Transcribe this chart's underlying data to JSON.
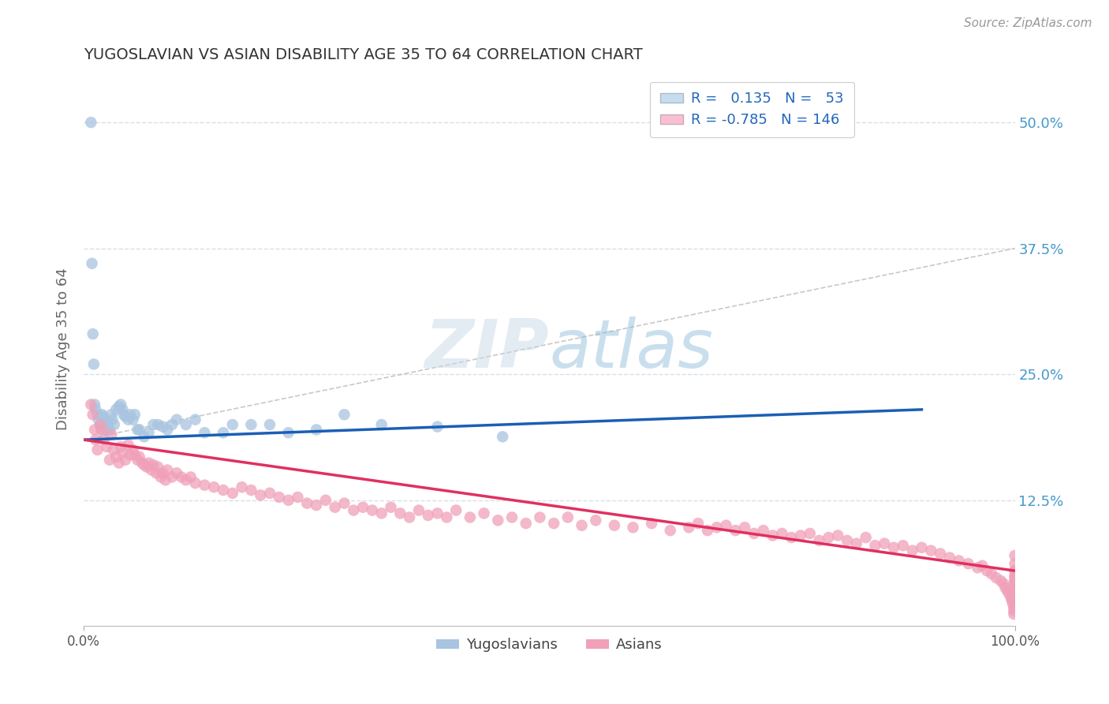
{
  "title": "YUGOSLAVIAN VS ASIAN DISABILITY AGE 35 TO 64 CORRELATION CHART",
  "source_text": "Source: ZipAtlas.com",
  "ylabel": "Disability Age 35 to 64",
  "watermark": "ZIPatlas",
  "xlim": [
    0.0,
    1.0
  ],
  "ylim": [
    0.0,
    0.55
  ],
  "yticks_right": [
    0.125,
    0.25,
    0.375,
    0.5
  ],
  "ytick_labels_right": [
    "12.5%",
    "25.0%",
    "37.5%",
    "50.0%"
  ],
  "blue_R": 0.135,
  "blue_N": 53,
  "pink_R": -0.785,
  "pink_N": 146,
  "blue_color": "#a8c4e0",
  "pink_color": "#f0a0b8",
  "blue_line_color": "#1a5fb4",
  "pink_line_color": "#e03060",
  "dashed_line_color": "#bbbbbb",
  "grid_color": "#d8dfe8",
  "background_color": "#ffffff",
  "title_color": "#333333",
  "right_axis_color": "#4499cc",
  "legend_box_color_blue": "#c8dcf0",
  "legend_box_color_pink": "#f8c0d0",
  "blue_x": [
    0.008,
    0.009,
    0.01,
    0.011,
    0.012,
    0.013,
    0.015,
    0.016,
    0.018,
    0.019,
    0.02,
    0.021,
    0.022,
    0.023,
    0.025,
    0.026,
    0.028,
    0.03,
    0.031,
    0.033,
    0.035,
    0.038,
    0.04,
    0.042,
    0.043,
    0.045,
    0.048,
    0.05,
    0.053,
    0.055,
    0.058,
    0.06,
    0.065,
    0.07,
    0.075,
    0.08,
    0.085,
    0.09,
    0.095,
    0.1,
    0.11,
    0.12,
    0.13,
    0.15,
    0.16,
    0.18,
    0.2,
    0.22,
    0.25,
    0.28,
    0.32,
    0.38,
    0.45
  ],
  "blue_y": [
    0.5,
    0.36,
    0.29,
    0.26,
    0.22,
    0.215,
    0.21,
    0.205,
    0.2,
    0.195,
    0.21,
    0.208,
    0.205,
    0.2,
    0.195,
    0.2,
    0.195,
    0.21,
    0.205,
    0.2,
    0.215,
    0.218,
    0.22,
    0.215,
    0.21,
    0.208,
    0.205,
    0.21,
    0.205,
    0.21,
    0.195,
    0.195,
    0.188,
    0.192,
    0.2,
    0.2,
    0.198,
    0.195,
    0.2,
    0.205,
    0.2,
    0.205,
    0.192,
    0.192,
    0.2,
    0.2,
    0.2,
    0.192,
    0.195,
    0.21,
    0.2,
    0.198,
    0.188
  ],
  "pink_x": [
    0.008,
    0.01,
    0.012,
    0.013,
    0.015,
    0.018,
    0.02,
    0.022,
    0.025,
    0.028,
    0.03,
    0.032,
    0.035,
    0.038,
    0.04,
    0.042,
    0.045,
    0.048,
    0.05,
    0.053,
    0.055,
    0.058,
    0.06,
    0.063,
    0.065,
    0.068,
    0.07,
    0.073,
    0.075,
    0.078,
    0.08,
    0.083,
    0.085,
    0.088,
    0.09,
    0.095,
    0.1,
    0.105,
    0.11,
    0.115,
    0.12,
    0.13,
    0.14,
    0.15,
    0.16,
    0.17,
    0.18,
    0.19,
    0.2,
    0.21,
    0.22,
    0.23,
    0.24,
    0.25,
    0.26,
    0.27,
    0.28,
    0.29,
    0.3,
    0.31,
    0.32,
    0.33,
    0.34,
    0.35,
    0.36,
    0.37,
    0.38,
    0.39,
    0.4,
    0.415,
    0.43,
    0.445,
    0.46,
    0.475,
    0.49,
    0.505,
    0.52,
    0.535,
    0.55,
    0.57,
    0.59,
    0.61,
    0.63,
    0.65,
    0.66,
    0.67,
    0.68,
    0.69,
    0.7,
    0.71,
    0.72,
    0.73,
    0.74,
    0.75,
    0.76,
    0.77,
    0.78,
    0.79,
    0.8,
    0.81,
    0.82,
    0.83,
    0.84,
    0.85,
    0.86,
    0.87,
    0.88,
    0.89,
    0.9,
    0.91,
    0.92,
    0.93,
    0.94,
    0.95,
    0.96,
    0.965,
    0.97,
    0.975,
    0.98,
    0.985,
    0.988,
    0.99,
    0.992,
    0.994,
    0.996,
    0.997,
    0.998,
    0.999,
    0.999,
    0.999,
    1.0,
    1.0,
    1.0,
    1.0,
    1.0,
    1.0,
    1.0,
    1.0,
    1.0,
    1.0,
    1.0,
    1.0,
    1.0,
    1.0,
    1.0,
    1.0
  ],
  "pink_y": [
    0.22,
    0.21,
    0.195,
    0.185,
    0.175,
    0.2,
    0.195,
    0.185,
    0.178,
    0.165,
    0.19,
    0.175,
    0.168,
    0.162,
    0.178,
    0.172,
    0.165,
    0.18,
    0.17,
    0.175,
    0.17,
    0.165,
    0.168,
    0.162,
    0.16,
    0.158,
    0.162,
    0.155,
    0.16,
    0.152,
    0.158,
    0.148,
    0.152,
    0.145,
    0.155,
    0.148,
    0.152,
    0.148,
    0.145,
    0.148,
    0.142,
    0.14,
    0.138,
    0.135,
    0.132,
    0.138,
    0.135,
    0.13,
    0.132,
    0.128,
    0.125,
    0.128,
    0.122,
    0.12,
    0.125,
    0.118,
    0.122,
    0.115,
    0.118,
    0.115,
    0.112,
    0.118,
    0.112,
    0.108,
    0.115,
    0.11,
    0.112,
    0.108,
    0.115,
    0.108,
    0.112,
    0.105,
    0.108,
    0.102,
    0.108,
    0.102,
    0.108,
    0.1,
    0.105,
    0.1,
    0.098,
    0.102,
    0.095,
    0.098,
    0.102,
    0.095,
    0.098,
    0.1,
    0.095,
    0.098,
    0.092,
    0.095,
    0.09,
    0.092,
    0.088,
    0.09,
    0.092,
    0.085,
    0.088,
    0.09,
    0.085,
    0.082,
    0.088,
    0.08,
    0.082,
    0.078,
    0.08,
    0.075,
    0.078,
    0.075,
    0.072,
    0.068,
    0.065,
    0.062,
    0.058,
    0.06,
    0.055,
    0.052,
    0.048,
    0.045,
    0.042,
    0.038,
    0.035,
    0.032,
    0.028,
    0.025,
    0.022,
    0.018,
    0.015,
    0.012,
    0.05,
    0.045,
    0.038,
    0.032,
    0.028,
    0.055,
    0.048,
    0.042,
    0.062,
    0.035,
    0.07,
    0.055,
    0.045,
    0.038,
    0.03,
    0.025
  ]
}
